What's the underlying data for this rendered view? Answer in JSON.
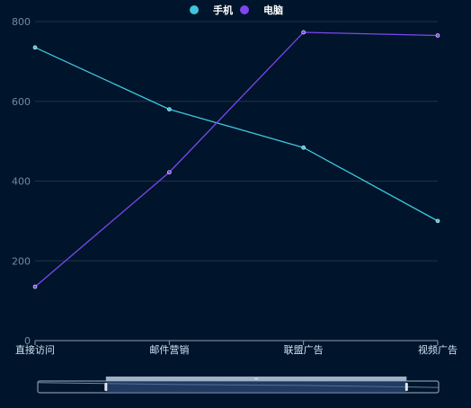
{
  "colors": {
    "background": "#00152b",
    "grid": "#1e3148",
    "axis_line": "#8aa0b8",
    "tick_label": "#6f8aa6",
    "category_label": "#cfe3f5",
    "legend_text": "#ffffff",
    "zoom_border": "#9fb1c4",
    "zoom_fill": "#3a5a8c",
    "zoom_handle_bar": "#9fb1c4"
  },
  "chart_data": {
    "type": "line",
    "title": "",
    "xlabel": "",
    "ylabel": "",
    "categories": [
      "直接访问",
      "邮件营销",
      "联盟广告",
      "视频广告"
    ],
    "ylim": [
      0,
      800
    ],
    "yticks": [
      0,
      200,
      400,
      600,
      800
    ],
    "grid": true,
    "legend_position": "top-center",
    "series": [
      {
        "name": "手机",
        "color": "#3ec5dd",
        "values": [
          735,
          580,
          484,
          300
        ]
      },
      {
        "name": "电脑",
        "color": "#7e46f0",
        "values": [
          135,
          422,
          773,
          765
        ]
      }
    ],
    "data_zoom": {
      "start": 0.17,
      "end": 0.92,
      "handle_label": "⇔"
    }
  }
}
